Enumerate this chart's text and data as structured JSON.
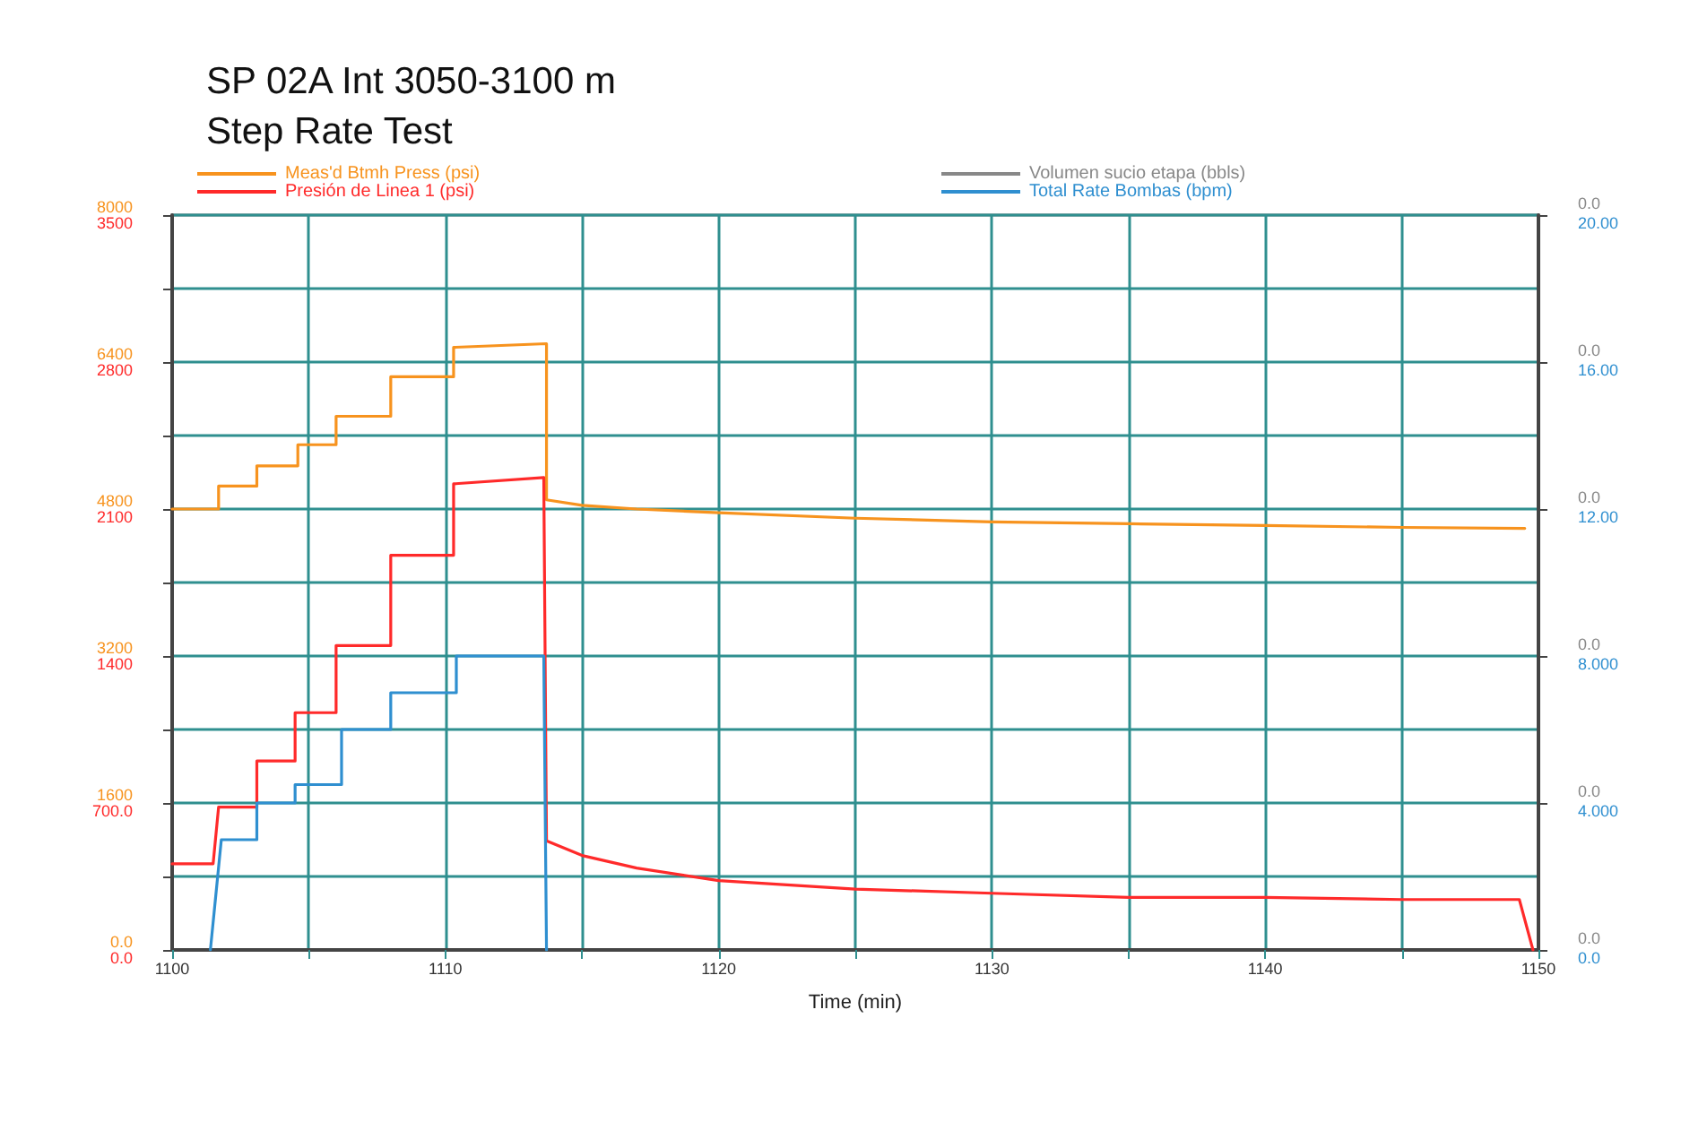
{
  "chart_data": {
    "type": "line",
    "title": "SP 02A Int 3050-3100 m",
    "subtitle": "Step Rate Test",
    "xlabel": "Time (min)",
    "xlim": [
      1100,
      1150
    ],
    "xticks": [
      1100,
      {
        "value": 1105,
        "label": null
      },
      1110,
      {
        "value": 1115,
        "label": null
      },
      1120,
      {
        "value": 1125,
        "label": null
      },
      1130,
      {
        "value": 1135,
        "label": null
      },
      1140,
      {
        "value": 1145,
        "label": null
      },
      1150
    ],
    "ylim": [
      0,
      8000
    ],
    "yticks": [
      {
        "value": 0,
        "label": "0.0"
      },
      {
        "value": 800,
        "label": null
      },
      1600,
      {
        "value": 2400,
        "label": null
      },
      3200,
      {
        "value": 4000,
        "label": null
      },
      4800,
      {
        "value": 5600,
        "label": null
      },
      6400,
      {
        "value": 7200,
        "label": null
      },
      8000
    ],
    "y2lim": [
      0,
      3500
    ],
    "y2ticks": [
      {
        "value": 0,
        "label": "0.0"
      },
      {
        "value": 700,
        "label": "700.0"
      },
      1400,
      2100,
      2800,
      3500
    ],
    "y3lim": [
      0,
      20
    ],
    "y3ticks": [
      {
        "value": 0,
        "label": "0.0"
      },
      {
        "value": 4,
        "label": "4.000"
      },
      {
        "value": 8,
        "label": "8.000"
      },
      {
        "value": 12,
        "label": "12.00"
      },
      {
        "value": 16,
        "label": "16.00"
      },
      {
        "value": 20,
        "label": "20.00"
      }
    ],
    "annotations": [
      "0.0",
      "0.0",
      "0.0",
      "0.0",
      "0.0",
      "0.0"
    ],
    "grid": true,
    "legend": "top",
    "marker": "none",
    "series": [
      {
        "name": "Meas'd Btmh Press (psi)",
        "color": "#f7931e",
        "axis": "y",
        "x": [
          1100,
          1101.7,
          1101.7,
          1103.1,
          1103.1,
          1104.6,
          1104.6,
          1106.0,
          1106.0,
          1108.0,
          1108.0,
          1110.3,
          1110.3,
          1113.7,
          1113.7,
          1115,
          1117,
          1120,
          1125,
          1130,
          1135,
          1140,
          1145,
          1149.5
        ],
        "values": [
          4800,
          4800,
          5050,
          5050,
          5270,
          5270,
          5500,
          5500,
          5810,
          5810,
          6240,
          6240,
          6560,
          6600,
          4900,
          4840,
          4800,
          4760,
          4700,
          4660,
          4640,
          4620,
          4600,
          4590
        ]
      },
      {
        "name": "Presión de Linea 1 (psi)",
        "color": "#ff2a2a",
        "axis": "y2",
        "x": [
          1100,
          1101.5,
          1101.7,
          1103.1,
          1103.1,
          1104.5,
          1104.5,
          1106.0,
          1106.0,
          1108.0,
          1108.0,
          1110.3,
          1110.3,
          1113.6,
          1113.7,
          1115,
          1117,
          1120,
          1125,
          1130,
          1135,
          1140,
          1145,
          1149.3,
          1149.8
        ],
        "values": [
          410,
          410,
          680,
          680,
          900,
          900,
          1130,
          1130,
          1450,
          1450,
          1880,
          1880,
          2220,
          2250,
          520,
          450,
          390,
          330,
          290,
          270,
          250,
          250,
          240,
          240,
          0
        ]
      },
      {
        "name": "Volumen sucio etapa (bbls)",
        "color": "#888888",
        "values": [
          null
        ]
      },
      {
        "name": "Total Rate Bombas (bpm)",
        "color": "#2f8fd0",
        "axis": "y3",
        "x": [
          1101.4,
          1101.8,
          1103.1,
          1103.1,
          1104.5,
          1104.5,
          1106.2,
          1106.2,
          1108.0,
          1108.0,
          1110.4,
          1110.4,
          1113.6,
          1113.7
        ],
        "values": [
          0,
          3,
          3,
          4,
          4,
          4.5,
          4.5,
          6,
          6,
          7,
          7,
          8,
          8,
          0
        ]
      }
    ]
  }
}
